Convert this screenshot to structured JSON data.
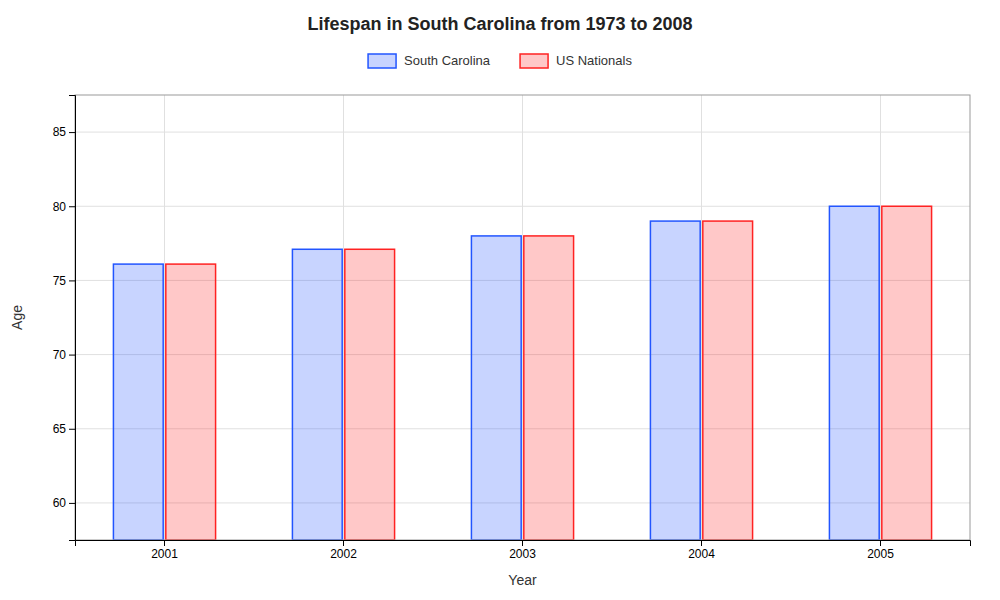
{
  "chart_data": {
    "type": "bar",
    "title": "Lifespan in South Carolina from 1973 to 2008",
    "xlabel": "Year",
    "ylabel": "Age",
    "categories": [
      "2001",
      "2002",
      "2003",
      "2004",
      "2005"
    ],
    "series": [
      {
        "name": "South Carolina",
        "color": "#2255ff",
        "values": [
          76.1,
          77.1,
          78.0,
          79.0,
          80.0
        ]
      },
      {
        "name": "US Nationals",
        "color": "#ff2222",
        "values": [
          76.1,
          77.1,
          78.0,
          79.0,
          80.0
        ]
      }
    ],
    "ylim": [
      57.5,
      87.5
    ],
    "yticks": [
      60,
      65,
      70,
      75,
      80,
      85
    ],
    "grid": true,
    "legend": "top"
  }
}
